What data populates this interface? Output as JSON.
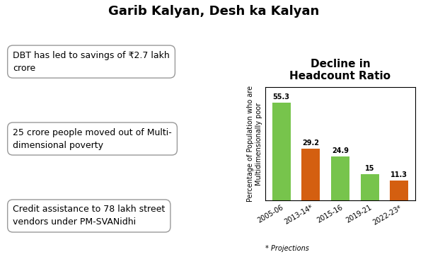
{
  "chart_data": {
    "type": "bar",
    "title": "Garib Kalyan, Desh ka Kalyan",
    "subtitle": "Decline in\nHeadcount Ratio",
    "ylabel": "Percentage of Population who are\nMultidimensionally poor",
    "categories": [
      "2005-06",
      "2013-14*",
      "2015-16",
      "2019-21",
      "2022-23*"
    ],
    "values": [
      55.3,
      29.2,
      24.9,
      15,
      11.3
    ],
    "colors": [
      "#77c44c",
      "#d45f10",
      "#77c44c",
      "#77c44c",
      "#d45f10"
    ],
    "ylim": [
      0,
      64
    ],
    "yticks": [],
    "tick_labels": "x",
    "data_labels": true,
    "grid": false,
    "annotations": [
      "DBT has led to savings of ₹2.7 lakh\ncrore",
      "25 crore people moved out of Multi-\ndimensional poverty",
      "Credit assistance to 78 lakh street\nvendors under PM-SVANidhi",
      "* Projections"
    ]
  }
}
